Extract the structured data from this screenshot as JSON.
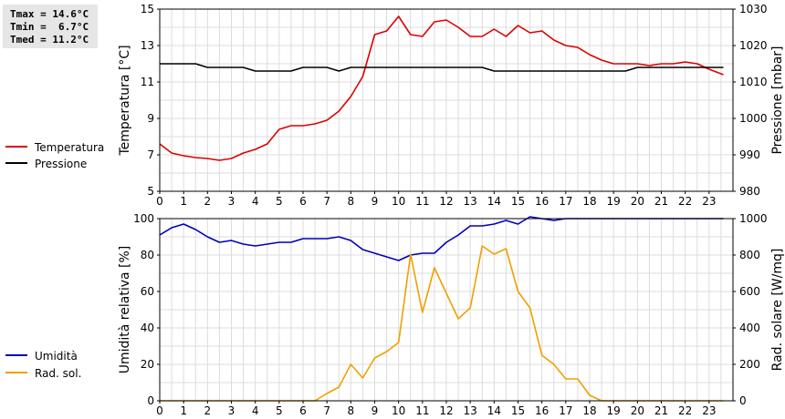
{
  "stats": {
    "tmax": "Tmax = 14.6°C",
    "tmin": "Tmin =  6.7°C",
    "tmed": "Tmed = 11.2°C"
  },
  "legend": {
    "temperature": "Temperatura",
    "pressure": "Pressione",
    "humidity": "Umidità",
    "radiation": "Rad. sol."
  },
  "colors": {
    "temperature": "#dd0000",
    "pressure": "#000000",
    "humidity": "#0000bb",
    "radiation": "#f0a000",
    "grid": "#dcdcdc"
  },
  "chart_data": [
    {
      "type": "line",
      "xlim": [
        0,
        24
      ],
      "x_ticks": [
        0,
        1,
        2,
        3,
        4,
        5,
        6,
        7,
        8,
        9,
        10,
        11,
        12,
        13,
        14,
        15,
        16,
        17,
        18,
        19,
        20,
        21,
        22,
        23
      ],
      "ylabel": "Temperatura [°C]",
      "ylim": [
        5,
        15
      ],
      "y_ticks": [
        5,
        7,
        9,
        11,
        13,
        15
      ],
      "y2label": "Pressione [mbar]",
      "y2lim": [
        980,
        1030
      ],
      "y2_ticks": [
        980,
        990,
        1000,
        1010,
        1020,
        1030
      ],
      "grid": true,
      "series": [
        {
          "name": "Temperatura",
          "axis": "left",
          "color": "#dd0000",
          "x": [
            0,
            0.3,
            0.5,
            1,
            1.5,
            2,
            2.5,
            3,
            3.5,
            4,
            4.5,
            5,
            5.5,
            6,
            6.5,
            7,
            7.5,
            8,
            8.5,
            9,
            9.5,
            10,
            10.5,
            11,
            11.5,
            12,
            12.5,
            13,
            13.5,
            14,
            14.5,
            15,
            15.5,
            16,
            16.5,
            17,
            17.5,
            18,
            18.5,
            19,
            19.5,
            20,
            20.5,
            21,
            21.5,
            22,
            22.5,
            23,
            23.6
          ],
          "y": [
            7.6,
            7.3,
            7.1,
            6.95,
            6.85,
            6.8,
            6.7,
            6.8,
            7.1,
            7.3,
            7.6,
            8.4,
            8.6,
            8.6,
            8.7,
            8.9,
            9.4,
            10.2,
            11.3,
            13.6,
            13.8,
            14.6,
            13.6,
            13.5,
            14.3,
            14.4,
            14.0,
            13.5,
            13.5,
            13.9,
            13.5,
            14.1,
            13.7,
            13.8,
            13.3,
            13.0,
            12.9,
            12.5,
            12.2,
            12.0,
            12.0,
            12.0,
            11.9,
            12.0,
            12.0,
            12.1,
            12.0,
            11.7,
            11.4
          ]
        },
        {
          "name": "Pressione",
          "axis": "right",
          "color": "#000000",
          "x": [
            0,
            0.5,
            1,
            1.5,
            2,
            2.5,
            3,
            3.5,
            4,
            4.5,
            5,
            5.5,
            6,
            6.5,
            7,
            7.5,
            8,
            8.5,
            9,
            9.5,
            10,
            10.5,
            11,
            11.5,
            12,
            12.5,
            13,
            13.5,
            14,
            14.5,
            15,
            15.5,
            16,
            16.5,
            17,
            17.5,
            18,
            18.5,
            19,
            19.5,
            20,
            20.5,
            21,
            21.5,
            22,
            22.5,
            23,
            23.6
          ],
          "y": [
            1015,
            1015,
            1015,
            1015,
            1014,
            1014,
            1014,
            1014,
            1013,
            1013,
            1013,
            1013,
            1014,
            1014,
            1014,
            1013,
            1014,
            1014,
            1014,
            1014,
            1014,
            1014,
            1014,
            1014,
            1014,
            1014,
            1014,
            1014,
            1013,
            1013,
            1013,
            1013,
            1013,
            1013,
            1013,
            1013,
            1013,
            1013,
            1013,
            1013,
            1014,
            1014,
            1014,
            1014,
            1014,
            1014,
            1014,
            1014
          ]
        }
      ]
    },
    {
      "type": "line",
      "xlim": [
        0,
        24
      ],
      "x_ticks": [
        0,
        1,
        2,
        3,
        4,
        5,
        6,
        7,
        8,
        9,
        10,
        11,
        12,
        13,
        14,
        15,
        16,
        17,
        18,
        19,
        20,
        21,
        22,
        23
      ],
      "ylabel": "Umidità relativa [%]",
      "ylim": [
        0,
        100
      ],
      "y_ticks": [
        0,
        20,
        40,
        60,
        80,
        100
      ],
      "y2label": "Rad. solare [W/mq]",
      "y2lim": [
        0,
        1000
      ],
      "y2_ticks": [
        0,
        200,
        400,
        600,
        800,
        1000
      ],
      "grid": true,
      "series": [
        {
          "name": "Umidità",
          "axis": "left",
          "color": "#0000bb",
          "x": [
            0,
            0.5,
            1,
            1.5,
            2,
            2.5,
            3,
            3.5,
            4,
            4.5,
            5,
            5.5,
            6,
            6.5,
            7,
            7.5,
            8,
            8.5,
            9,
            9.5,
            10,
            10.5,
            11,
            11.5,
            12,
            12.5,
            13,
            13.5,
            14,
            14.5,
            15,
            15.5,
            16,
            16.5,
            17,
            17.5,
            18,
            18.5,
            19,
            19.5,
            20,
            20.5,
            21,
            21.5,
            22,
            22.5,
            23,
            23.6
          ],
          "y": [
            91,
            95,
            97,
            94,
            90,
            87,
            88,
            86,
            85,
            86,
            87,
            87,
            89,
            89,
            89,
            90,
            88,
            83,
            81,
            79,
            77,
            80,
            81,
            81,
            87,
            91,
            96,
            96,
            97,
            99,
            97,
            101,
            100,
            99,
            100,
            100,
            100,
            100,
            100,
            100,
            100,
            100,
            100,
            100,
            100,
            100,
            100,
            100
          ]
        },
        {
          "name": "Rad. sol.",
          "axis": "right",
          "color": "#f0a000",
          "x": [
            0,
            1,
            2,
            3,
            4,
            5,
            6,
            6.5,
            7,
            7.5,
            8,
            8.5,
            9,
            9.5,
            10,
            10.5,
            11,
            11.5,
            12,
            12.5,
            13,
            13.5,
            14,
            14.5,
            15,
            15.5,
            16,
            16.5,
            17,
            17.5,
            18,
            18.5,
            19,
            20,
            21,
            22,
            23,
            23.6
          ],
          "y": [
            0,
            0,
            0,
            0,
            0,
            0,
            0,
            0,
            40,
            75,
            200,
            125,
            235,
            270,
            320,
            805,
            485,
            730,
            590,
            450,
            510,
            850,
            805,
            835,
            600,
            510,
            250,
            200,
            120,
            120,
            30,
            0,
            0,
            0,
            0,
            0,
            0,
            0
          ]
        }
      ]
    }
  ]
}
